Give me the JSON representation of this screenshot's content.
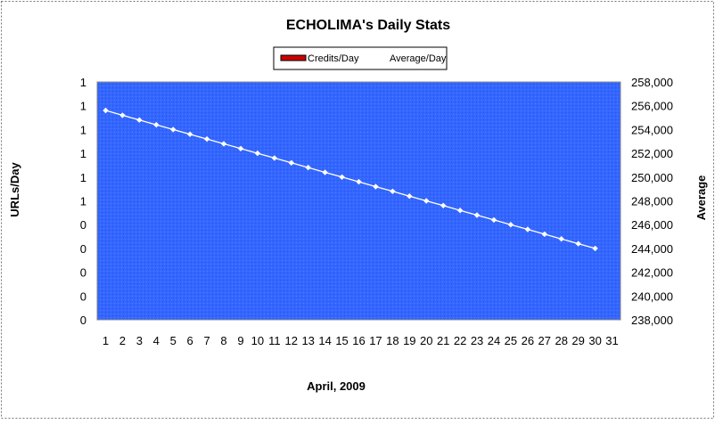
{
  "chart_data": {
    "type": "line",
    "title": "ECHOLIMA's Daily Stats",
    "xlabel": "April, 2009",
    "ylabel_left": "URLs/Day",
    "ylabel_right": "Average",
    "x_ticks": [
      "1",
      "2",
      "3",
      "4",
      "5",
      "6",
      "7",
      "8",
      "9",
      "10",
      "11",
      "12",
      "13",
      "14",
      "15",
      "16",
      "17",
      "18",
      "19",
      "20",
      "21",
      "22",
      "23",
      "24",
      "25",
      "26",
      "27",
      "28",
      "29",
      "30",
      "31"
    ],
    "y_left_ticks": [
      "0",
      "0",
      "0",
      "0",
      "0",
      "1",
      "1",
      "1",
      "1",
      "1",
      "1"
    ],
    "y_right_ticks": [
      "238,000",
      "240,000",
      "242,000",
      "244,000",
      "246,000",
      "248,000",
      "250,000",
      "252,000",
      "254,000",
      "256,000",
      "258,000"
    ],
    "y_right_lim": [
      238000,
      258000
    ],
    "legend": [
      "Credits/Day",
      "Average/Day"
    ],
    "legend_placement": "top-center",
    "grid": false,
    "colors": {
      "plot_background": "#3366ff",
      "credits_swatch": "#cc0000",
      "average_line": "#ffffff"
    },
    "series": [
      {
        "name": "Average/Day",
        "axis": "right",
        "x": [
          1,
          2,
          3,
          4,
          5,
          6,
          7,
          8,
          9,
          10,
          11,
          12,
          13,
          14,
          15,
          16,
          17,
          18,
          19,
          20,
          21,
          22,
          23,
          24,
          25,
          26,
          27,
          28,
          29,
          30
        ],
        "values": [
          255600,
          255200,
          254800,
          254400,
          254000,
          253600,
          253200,
          252800,
          252400,
          252000,
          251600,
          251200,
          250800,
          250400,
          250000,
          249600,
          249200,
          248800,
          248400,
          248000,
          247600,
          247200,
          246800,
          246400,
          246000,
          245600,
          245200,
          244800,
          244400,
          244000
        ]
      },
      {
        "name": "Credits/Day",
        "axis": "left",
        "x": [],
        "values": []
      }
    ]
  }
}
